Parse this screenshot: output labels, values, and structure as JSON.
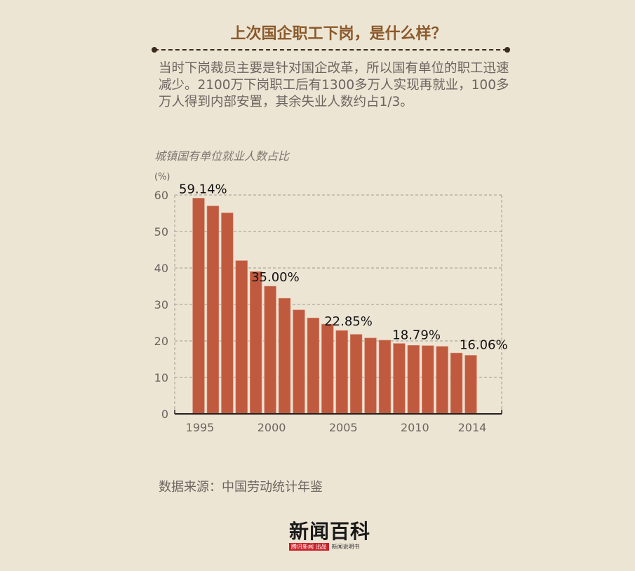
{
  "header": {
    "title": "上次国企职工下岗，是什么样？",
    "intro": "当时下岗裁员主要是针对国企改革，所以国有单位的职工迅速减少。2100万下岗职工后有1300多万人实现再就业，100多万人得到内部安置，其余失业人数约占1/3。"
  },
  "chart_data": {
    "type": "bar",
    "title": "城镇国有单位就业人数占比",
    "ylabel": "(%)",
    "ylim": [
      0,
      60
    ],
    "yticks": [
      0,
      10,
      20,
      30,
      40,
      50,
      60
    ],
    "grid": true,
    "categories": [
      1995,
      1996,
      1997,
      1998,
      1999,
      2000,
      2001,
      2002,
      2003,
      2004,
      2005,
      2006,
      2007,
      2008,
      2009,
      2010,
      2011,
      2012,
      2013,
      2014
    ],
    "xtick_labels": [
      "1995",
      "2000",
      "2005",
      "2010",
      "2014"
    ],
    "values": [
      59.14,
      57.0,
      55.1,
      42.0,
      39.0,
      35.0,
      31.7,
      28.5,
      26.3,
      24.6,
      22.85,
      21.8,
      20.8,
      20.2,
      19.3,
      18.79,
      18.7,
      18.5,
      16.7,
      16.06
    ],
    "data_labels": [
      {
        "year": 1995,
        "text": "59.14%"
      },
      {
        "year": 2000,
        "text": "35.00%"
      },
      {
        "year": 2005,
        "text": "22.85%"
      },
      {
        "year": 2010,
        "text": "18.79%"
      },
      {
        "year": 2014,
        "text": "16.06%"
      }
    ],
    "bar_color": "#c05a3f"
  },
  "footer": {
    "source": "数据来源：中国劳动统计年鉴",
    "logo": {
      "name": "新闻百科",
      "badge": "腾讯新闻 出品",
      "tagline": "新闻说明书"
    }
  }
}
